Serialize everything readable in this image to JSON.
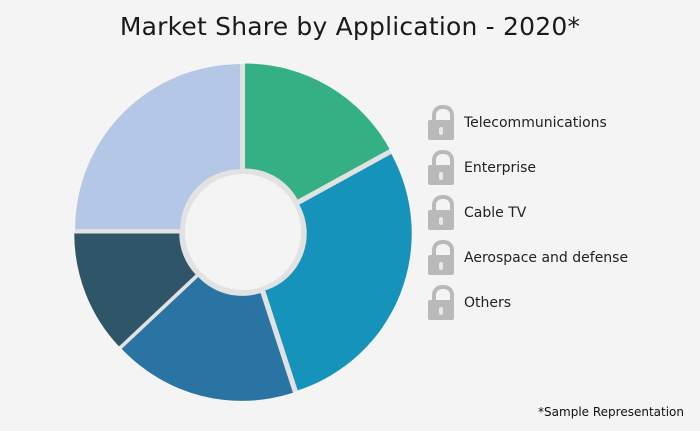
{
  "chart_data": {
    "type": "pie",
    "variant": "donut",
    "title": "Market Share by Application - 2020*",
    "categories": [
      "Telecommunications",
      "Enterprise",
      "Cable TV",
      "Aerospace and defense",
      "Others"
    ],
    "values": [
      17,
      28,
      18,
      12,
      25
    ],
    "colors": [
      "#35b085",
      "#1593bb",
      "#2a74a3",
      "#2f5568",
      "#b4c7e6"
    ],
    "legend": {
      "placement": "right",
      "icon": "lock-icon",
      "icon_color": "#b9b9b9"
    },
    "note": "*Sample Representation"
  }
}
